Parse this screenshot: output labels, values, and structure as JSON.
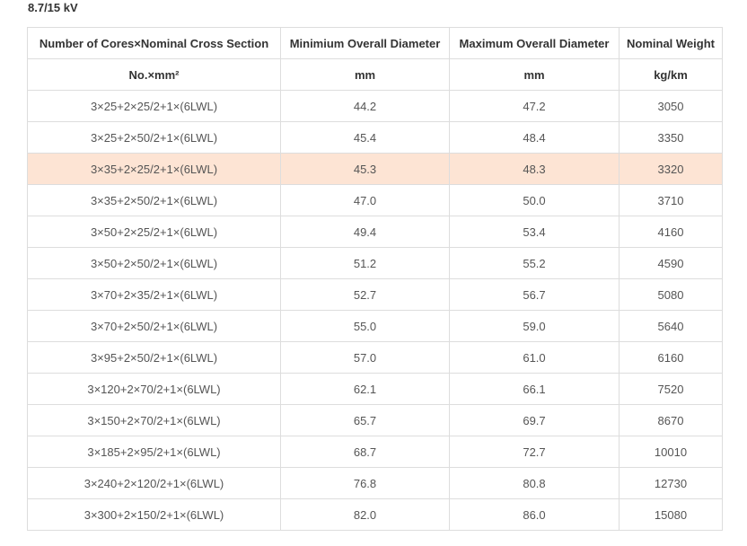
{
  "title": "8.7/15 kV",
  "table": {
    "headers": [
      "Number of Cores×Nominal Cross Section",
      "Minimium Overall Diameter",
      "Maximum Overall Diameter",
      "Nominal Weight"
    ],
    "units": [
      "No.×mm²",
      "mm",
      "mm",
      "kg/km"
    ],
    "highlight_color": "#fde4d4",
    "rows": [
      [
        "3×25+2×25/2+1×(6LWL)",
        "44.2",
        "47.2",
        "3050"
      ],
      [
        "3×25+2×50/2+1×(6LWL)",
        "45.4",
        "48.4",
        "3350"
      ],
      [
        "3×35+2×25/2+1×(6LWL)",
        "45.3",
        "48.3",
        "3320"
      ],
      [
        "3×35+2×50/2+1×(6LWL)",
        "47.0",
        "50.0",
        "3710"
      ],
      [
        "3×50+2×25/2+1×(6LWL)",
        "49.4",
        "53.4",
        "4160"
      ],
      [
        "3×50+2×50/2+1×(6LWL)",
        "51.2",
        "55.2",
        "4590"
      ],
      [
        "3×70+2×35/2+1×(6LWL)",
        "52.7",
        "56.7",
        "5080"
      ],
      [
        "3×70+2×50/2+1×(6LWL)",
        "55.0",
        "59.0",
        "5640"
      ],
      [
        "3×95+2×50/2+1×(6LWL)",
        "57.0",
        "61.0",
        "6160"
      ],
      [
        "3×120+2×70/2+1×(6LWL)",
        "62.1",
        "66.1",
        "7520"
      ],
      [
        "3×150+2×70/2+1×(6LWL)",
        "65.7",
        "69.7",
        "8670"
      ],
      [
        "3×185+2×95/2+1×(6LWL)",
        "68.7",
        "72.7",
        "10010"
      ],
      [
        "3×240+2×120/2+1×(6LWL)",
        "76.8",
        "80.8",
        "12730"
      ],
      [
        "3×300+2×150/2+1×(6LWL)",
        "82.0",
        "86.0",
        "15080"
      ]
    ]
  }
}
